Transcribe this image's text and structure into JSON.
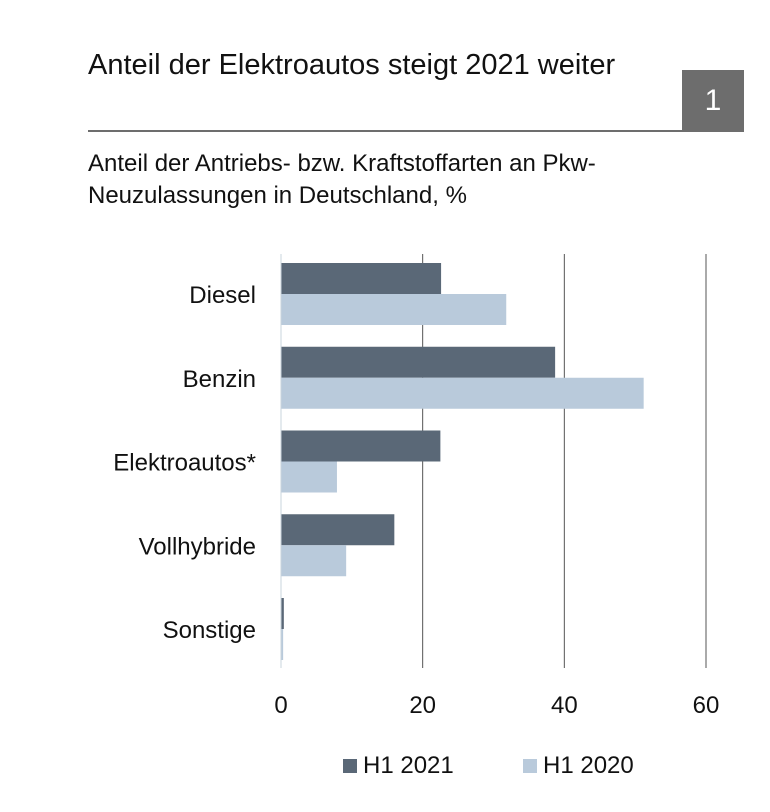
{
  "header": {
    "title": "Anteil der Elektroautos steigt 2021 weiter",
    "badge": "1",
    "subtitle": "Anteil der Antriebs- bzw. Kraftstoffarten an Pkw-Neuzulassungen in Deutschland, %"
  },
  "colors": {
    "h1_2021": "#5a6877",
    "h1_2020": "#b9cadb",
    "grid": "#555555"
  },
  "chart_data": {
    "type": "bar",
    "orientation": "horizontal",
    "categories": [
      "Diesel",
      "Benzin",
      "Elektroautos*",
      "Vollhybride",
      "Sonstige"
    ],
    "series": [
      {
        "name": "H1 2021",
        "values": [
          22.6,
          38.7,
          22.5,
          16.0,
          0.4
        ]
      },
      {
        "name": "H1 2020",
        "values": [
          31.8,
          51.2,
          7.9,
          9.2,
          0.3
        ]
      }
    ],
    "xlim": [
      0,
      60
    ],
    "xticks": [
      "0",
      "20",
      "40",
      "60"
    ],
    "grid": true,
    "legend": "bottom"
  }
}
